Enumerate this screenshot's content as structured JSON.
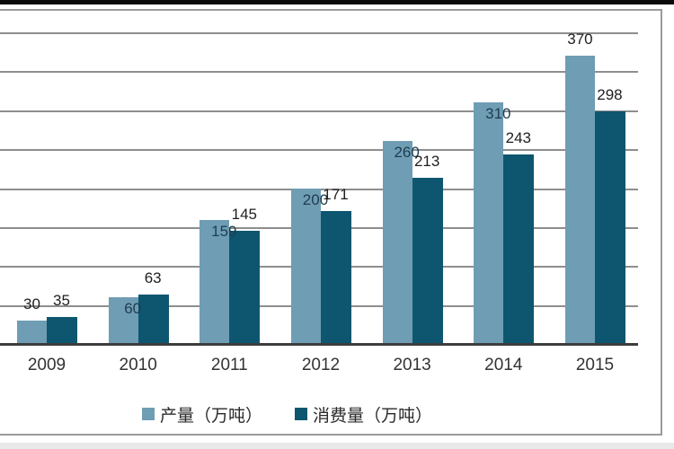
{
  "chart_data": {
    "type": "bar",
    "title": "",
    "categories": [
      "2009",
      "2010",
      "2011",
      "2012",
      "2013",
      "2014",
      "2015"
    ],
    "series": [
      {
        "name": "产量（万吨）",
        "values": [
          30,
          60,
          159,
          200,
          260,
          310,
          370
        ],
        "color": "#6f9db4"
      },
      {
        "name": "消费量（万吨）",
        "values": [
          35,
          63,
          145,
          171,
          213,
          243,
          298
        ],
        "color": "#0e566f"
      }
    ],
    "ylim": [
      0,
      400
    ],
    "grid_interval": 50,
    "grid": "on",
    "y_axis_tick_labels_visible": false,
    "legend_position": "bottom",
    "value_labels_visible": true
  },
  "colors": {
    "production_bar": "#6f9db4",
    "consumption_bar": "#0e566f",
    "gridline": "#8e8e8e",
    "axis_line": "#3d3d3d",
    "frame_border": "#9b9b9b",
    "text": "#1f1f1f",
    "background": "#ffffff",
    "top_bar": "#0b0b0b"
  }
}
